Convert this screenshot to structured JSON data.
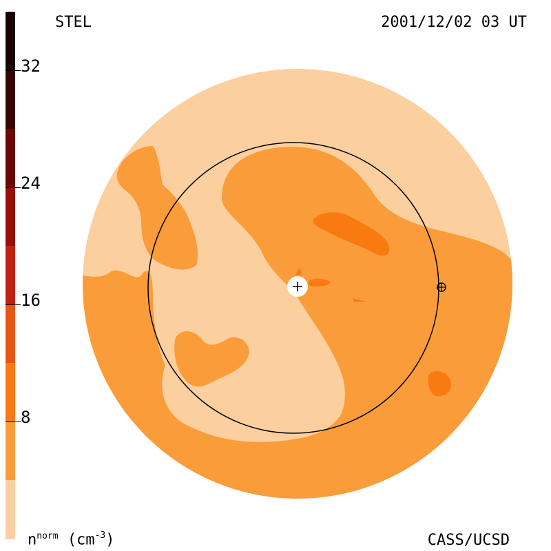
{
  "header": {
    "left_label": "STEL",
    "right_label": "2001/12/02 03 UT"
  },
  "footer": {
    "right_label": "CASS/UCSD",
    "units_base": "n",
    "units_sup": "norm",
    "units_open": "(cm",
    "units_exp": "-3",
    "units_close": ")"
  },
  "colorbar": {
    "ticks": [
      "8",
      "16",
      "24",
      "32"
    ],
    "colors": [
      "#fbd0a0",
      "#fa9c3a",
      "#f87a10",
      "#e85412",
      "#c22010",
      "#981008",
      "#6a0808",
      "#3a0406",
      "#1a0203"
    ]
  },
  "map": {
    "colors": {
      "light": "#fbcf9e",
      "mid": "#fa9c3a",
      "dark": "#f87a10",
      "circle": "#000000",
      "center": "#ffffff"
    }
  }
}
